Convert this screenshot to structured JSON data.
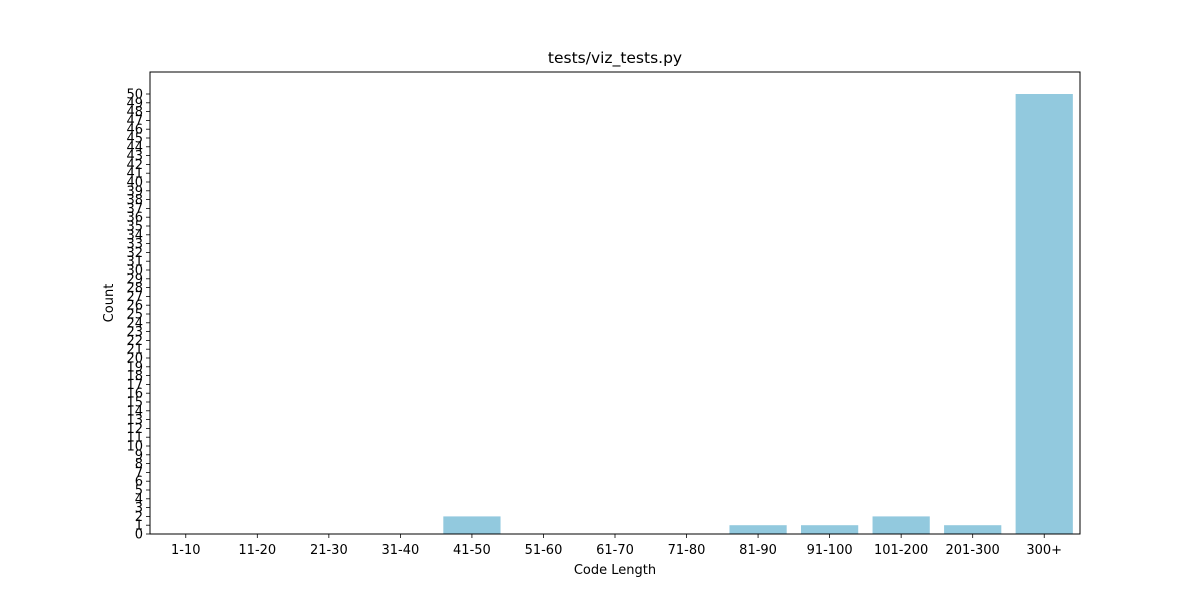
{
  "chart_data": {
    "type": "bar",
    "title": "tests/viz_tests.py",
    "xlabel": "Code Length",
    "ylabel": "Count",
    "categories": [
      "1-10",
      "11-20",
      "21-30",
      "31-40",
      "41-50",
      "51-60",
      "61-70",
      "71-80",
      "81-90",
      "91-100",
      "101-200",
      "201-300",
      "300+"
    ],
    "values": [
      0,
      0,
      0,
      0,
      2,
      0,
      0,
      0,
      1,
      1,
      2,
      1,
      50
    ],
    "ylim": [
      0,
      52.5
    ],
    "yticks": [
      0,
      1,
      2,
      3,
      4,
      5,
      6,
      7,
      8,
      9,
      10,
      11,
      12,
      13,
      14,
      15,
      16,
      17,
      18,
      19,
      20,
      21,
      22,
      23,
      24,
      25,
      26,
      27,
      28,
      29,
      30,
      31,
      32,
      33,
      34,
      35,
      36,
      37,
      38,
      39,
      40,
      41,
      42,
      43,
      44,
      45,
      46,
      47,
      48,
      49,
      50
    ],
    "bar_color": "#92c9de",
    "grid": false,
    "legend": "none"
  }
}
